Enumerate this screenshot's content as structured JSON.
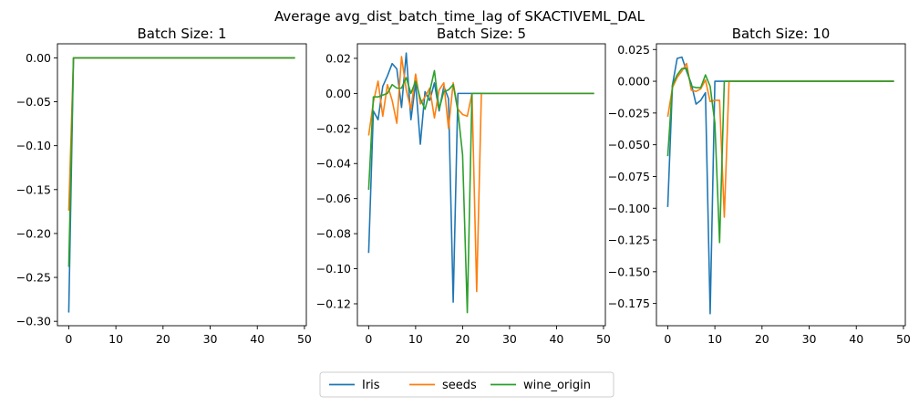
{
  "suptitle": "Average avg_dist_batch_time_lag of SKACTIVEML_DAL",
  "colors": {
    "Iris": "#1f77b4",
    "seeds": "#ff7f0e",
    "wine_origin": "#2ca02c"
  },
  "legend": {
    "placement": "bottom-center",
    "entries": [
      "Iris",
      "seeds",
      "wine_origin"
    ]
  },
  "chart_data": [
    {
      "type": "line",
      "title": "Batch Size: 1",
      "xlabel": "",
      "ylabel": "",
      "xlim": [
        -2.4,
        50.4
      ],
      "ylim": [
        -0.305,
        0.016
      ],
      "xticks": [
        0,
        10,
        20,
        30,
        40,
        50
      ],
      "yticks": [
        0.0,
        -0.05,
        -0.1,
        -0.15,
        -0.2,
        -0.25,
        -0.3
      ],
      "ytick_labels": [
        "0.00",
        "−0.05",
        "−0.10",
        "−0.15",
        "−0.20",
        "−0.25",
        "−0.30"
      ],
      "grid": false,
      "series": [
        {
          "name": "Iris",
          "x": [
            0,
            1,
            48
          ],
          "y": [
            -0.29,
            0.0,
            0.0
          ]
        },
        {
          "name": "seeds",
          "x": [
            0,
            1,
            48
          ],
          "y": [
            -0.174,
            0.0,
            0.0
          ]
        },
        {
          "name": "wine_origin",
          "x": [
            0,
            1,
            48
          ],
          "y": [
            -0.238,
            0.0,
            0.0
          ]
        }
      ]
    },
    {
      "type": "line",
      "title": "Batch Size: 5",
      "xlabel": "",
      "ylabel": "",
      "xlim": [
        -2.4,
        50.4
      ],
      "ylim": [
        -0.1325,
        0.0283
      ],
      "xticks": [
        0,
        10,
        20,
        30,
        40,
        50
      ],
      "yticks": [
        0.02,
        0.0,
        -0.02,
        -0.04,
        -0.06,
        -0.08,
        -0.1,
        -0.12
      ],
      "ytick_labels": [
        "0.02",
        "0.00",
        "−0.02",
        "−0.04",
        "−0.06",
        "−0.08",
        "−0.10",
        "−0.12"
      ],
      "grid": false,
      "series": [
        {
          "name": "Iris",
          "x": [
            0,
            1,
            2,
            3,
            4,
            5,
            6,
            7,
            8,
            9,
            10,
            11,
            12,
            13,
            14,
            15,
            16,
            17,
            18,
            19,
            20,
            48
          ],
          "y": [
            -0.091,
            -0.01,
            -0.015,
            0.004,
            0.01,
            0.017,
            0.014,
            -0.008,
            0.023,
            -0.015,
            0.006,
            -0.029,
            0.001,
            -0.004,
            0.006,
            -0.01,
            0.004,
            -0.003,
            -0.119,
            0.0,
            0.0,
            0.0
          ]
        },
        {
          "name": "seeds",
          "x": [
            0,
            1,
            2,
            3,
            4,
            5,
            6,
            7,
            8,
            9,
            10,
            11,
            12,
            13,
            14,
            15,
            16,
            17,
            18,
            19,
            20,
            21,
            22,
            23,
            24,
            48
          ],
          "y": [
            -0.024,
            -0.005,
            0.007,
            -0.013,
            0.005,
            -0.004,
            -0.017,
            0.021,
            0.002,
            -0.009,
            0.011,
            -0.006,
            -0.002,
            0.003,
            -0.014,
            0.002,
            0.006,
            -0.02,
            0.006,
            -0.009,
            -0.012,
            -0.013,
            0.0,
            -0.113,
            0.0,
            0.0
          ]
        },
        {
          "name": "wine_origin",
          "x": [
            0,
            1,
            2,
            3,
            4,
            5,
            6,
            7,
            8,
            9,
            10,
            11,
            12,
            13,
            14,
            15,
            16,
            17,
            18,
            19,
            20,
            21,
            22,
            48
          ],
          "y": [
            -0.055,
            -0.002,
            -0.002,
            -0.001,
            0.0,
            0.005,
            0.003,
            0.003,
            0.009,
            0.0,
            0.007,
            -0.003,
            -0.009,
            0.001,
            0.013,
            -0.009,
            0.001,
            0.002,
            0.005,
            -0.01,
            -0.035,
            -0.125,
            0.0,
            0.0
          ]
        }
      ]
    },
    {
      "type": "line",
      "title": "Batch Size: 10",
      "xlabel": "",
      "ylabel": "",
      "xlim": [
        -2.4,
        50.4
      ],
      "ylim": [
        -0.1925,
        0.0295
      ],
      "xticks": [
        0,
        10,
        20,
        30,
        40,
        50
      ],
      "yticks": [
        0.025,
        0.0,
        -0.025,
        -0.05,
        -0.075,
        -0.1,
        -0.125,
        -0.15,
        -0.175
      ],
      "ytick_labels": [
        "0.025",
        "0.000",
        "−0.025",
        "−0.050",
        "−0.075",
        "−0.100",
        "−0.125",
        "−0.150",
        "−0.175"
      ],
      "grid": false,
      "series": [
        {
          "name": "Iris",
          "x": [
            0,
            1,
            2,
            3,
            4,
            5,
            6,
            7,
            8,
            9,
            10,
            11,
            48
          ],
          "y": [
            -0.099,
            -0.003,
            0.018,
            0.019,
            0.008,
            -0.002,
            -0.018,
            -0.015,
            -0.009,
            -0.183,
            0.0,
            0.0,
            0.0
          ]
        },
        {
          "name": "seeds",
          "x": [
            0,
            1,
            2,
            3,
            4,
            5,
            6,
            7,
            8,
            9,
            10,
            11,
            12,
            13,
            48
          ],
          "y": [
            -0.028,
            -0.005,
            0.003,
            0.008,
            0.014,
            -0.007,
            -0.008,
            -0.006,
            0.001,
            -0.016,
            -0.015,
            -0.015,
            -0.107,
            0.0,
            0.0
          ]
        },
        {
          "name": "wine_origin",
          "x": [
            0,
            1,
            2,
            3,
            4,
            5,
            6,
            7,
            8,
            9,
            10,
            11,
            12,
            48
          ],
          "y": [
            -0.059,
            -0.003,
            0.005,
            0.01,
            0.01,
            -0.004,
            -0.005,
            -0.005,
            0.005,
            -0.004,
            -0.033,
            -0.127,
            0.0,
            0.0
          ]
        }
      ]
    }
  ]
}
